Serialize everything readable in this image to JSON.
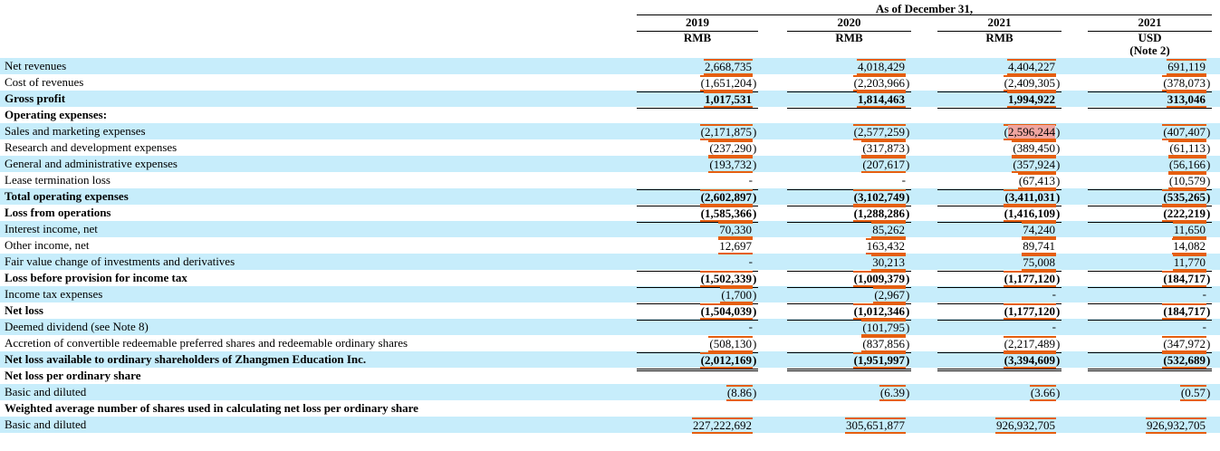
{
  "colors": {
    "row_shade": "#c7edfb",
    "number_mark_orange": "#e55f10",
    "highlight_pink": "#efa5a0",
    "rule_black": "#000000"
  },
  "header": {
    "title": "As of December 31,",
    "columns": [
      {
        "year": "2019",
        "currency": "RMB",
        "note": ""
      },
      {
        "year": "2020",
        "currency": "RMB",
        "note": ""
      },
      {
        "year": "2021",
        "currency": "RMB",
        "note": ""
      },
      {
        "year": "2021",
        "currency": "USD",
        "note": "(Note 2)"
      }
    ]
  },
  "rows": [
    {
      "label": "Net revenues",
      "bold": false,
      "shade": true,
      "rule": "none",
      "highlight_col": null,
      "values": [
        "2,668,735",
        "4,018,429",
        "4,404,227",
        "691,119"
      ]
    },
    {
      "label": "Cost of revenues",
      "bold": false,
      "shade": false,
      "rule": "single",
      "highlight_col": null,
      "values": [
        "(1,651,204)",
        "(2,203,966)",
        "(2,409,305)",
        "(378,073)"
      ]
    },
    {
      "label": "Gross profit",
      "bold": true,
      "shade": true,
      "rule": "single",
      "highlight_col": null,
      "values": [
        "1,017,531",
        "1,814,463",
        "1,994,922",
        "313,046"
      ]
    },
    {
      "label": "Operating expenses:",
      "bold": true,
      "shade": false,
      "rule": "none",
      "highlight_col": null,
      "values": [
        "",
        "",
        "",
        ""
      ]
    },
    {
      "label": "Sales and marketing expenses",
      "bold": false,
      "shade": true,
      "rule": "none",
      "highlight_col": 2,
      "values": [
        "(2,171,875)",
        "(2,577,259)",
        "(2,596,244)",
        "(407,407)"
      ]
    },
    {
      "label": "Research and development expenses",
      "bold": false,
      "shade": false,
      "rule": "none",
      "highlight_col": null,
      "values": [
        "(237,290)",
        "(317,873)",
        "(389,450)",
        "(61,113)"
      ]
    },
    {
      "label": "General and administrative expenses",
      "bold": false,
      "shade": true,
      "rule": "none",
      "highlight_col": null,
      "values": [
        "(193,732)",
        "(207,617)",
        "(357,924)",
        "(56,166)"
      ]
    },
    {
      "label": "Lease termination loss",
      "bold": false,
      "shade": false,
      "rule": "single",
      "highlight_col": null,
      "values": [
        "-",
        "-",
        "(67,413)",
        "(10,579)"
      ]
    },
    {
      "label": "Total operating expenses",
      "bold": true,
      "shade": true,
      "rule": "single",
      "highlight_col": null,
      "values": [
        "(2,602,897)",
        "(3,102,749)",
        "(3,411,031)",
        "(535,265)"
      ]
    },
    {
      "label": "Loss from operations",
      "bold": true,
      "shade": false,
      "rule": "single",
      "highlight_col": null,
      "values": [
        "(1,585,366)",
        "(1,288,286)",
        "(1,416,109)",
        "(222,219)"
      ]
    },
    {
      "label": "Interest income, net",
      "bold": false,
      "shade": true,
      "rule": "none",
      "highlight_col": null,
      "values": [
        "70,330",
        "85,262",
        "74,240",
        "11,650"
      ]
    },
    {
      "label": "Other income, net",
      "bold": false,
      "shade": false,
      "rule": "none",
      "highlight_col": null,
      "values": [
        "12,697",
        "163,432",
        "89,741",
        "14,082"
      ]
    },
    {
      "label": "Fair value change of investments and derivatives",
      "bold": false,
      "shade": true,
      "rule": "single",
      "highlight_col": null,
      "values": [
        "-",
        "30,213",
        "75,008",
        "11,770"
      ]
    },
    {
      "label": "Loss before provision for income tax",
      "bold": true,
      "shade": false,
      "rule": "single",
      "highlight_col": null,
      "values": [
        "(1,502,339)",
        "(1,009,379)",
        "(1,177,120)",
        "(184,717)"
      ]
    },
    {
      "label": "Income tax expenses",
      "bold": false,
      "shade": true,
      "rule": "single",
      "highlight_col": null,
      "values": [
        "(1,700)",
        "(2,967)",
        "-",
        "-"
      ]
    },
    {
      "label": "Net loss",
      "bold": true,
      "shade": false,
      "rule": "single",
      "highlight_col": null,
      "values": [
        "(1,504,039)",
        "(1,012,346)",
        "(1,177,120)",
        "(184,717)"
      ]
    },
    {
      "label": "Deemed dividend (see Note 8)",
      "bold": false,
      "shade": true,
      "rule": "none",
      "highlight_col": null,
      "values": [
        "-",
        "(101,795)",
        "-",
        "-"
      ]
    },
    {
      "label": "Accretion of convertible redeemable preferred shares and redeemable ordinary shares",
      "bold": false,
      "shade": false,
      "rule": "single",
      "highlight_col": null,
      "values": [
        "(508,130)",
        "(837,856)",
        "(2,217,489)",
        "(347,972)"
      ]
    },
    {
      "label": "Net loss available to ordinary shareholders of Zhangmen Education Inc.",
      "bold": true,
      "shade": true,
      "rule": "double",
      "highlight_col": null,
      "values": [
        "(2,012,169)",
        "(1,951,997)",
        "(3,394,609)",
        "(532,689)"
      ]
    },
    {
      "label": "Net loss per ordinary share",
      "bold": true,
      "shade": false,
      "rule": "none",
      "highlight_col": null,
      "values": [
        "",
        "",
        "",
        ""
      ]
    },
    {
      "label": "Basic and diluted",
      "bold": false,
      "shade": true,
      "rule": "none",
      "highlight_col": null,
      "values": [
        "(8.86)",
        "(6.39)",
        "(3.66)",
        "(0.57)"
      ]
    },
    {
      "label": "Weighted average number of shares used in calculating net loss per ordinary share",
      "bold": true,
      "shade": false,
      "rule": "none",
      "highlight_col": null,
      "values": [
        "",
        "",
        "",
        ""
      ]
    },
    {
      "label": "Basic and diluted",
      "bold": false,
      "shade": true,
      "rule": "none",
      "highlight_col": null,
      "values": [
        "227,222,692",
        "305,651,877",
        "926,932,705",
        "926,932,705"
      ]
    }
  ]
}
